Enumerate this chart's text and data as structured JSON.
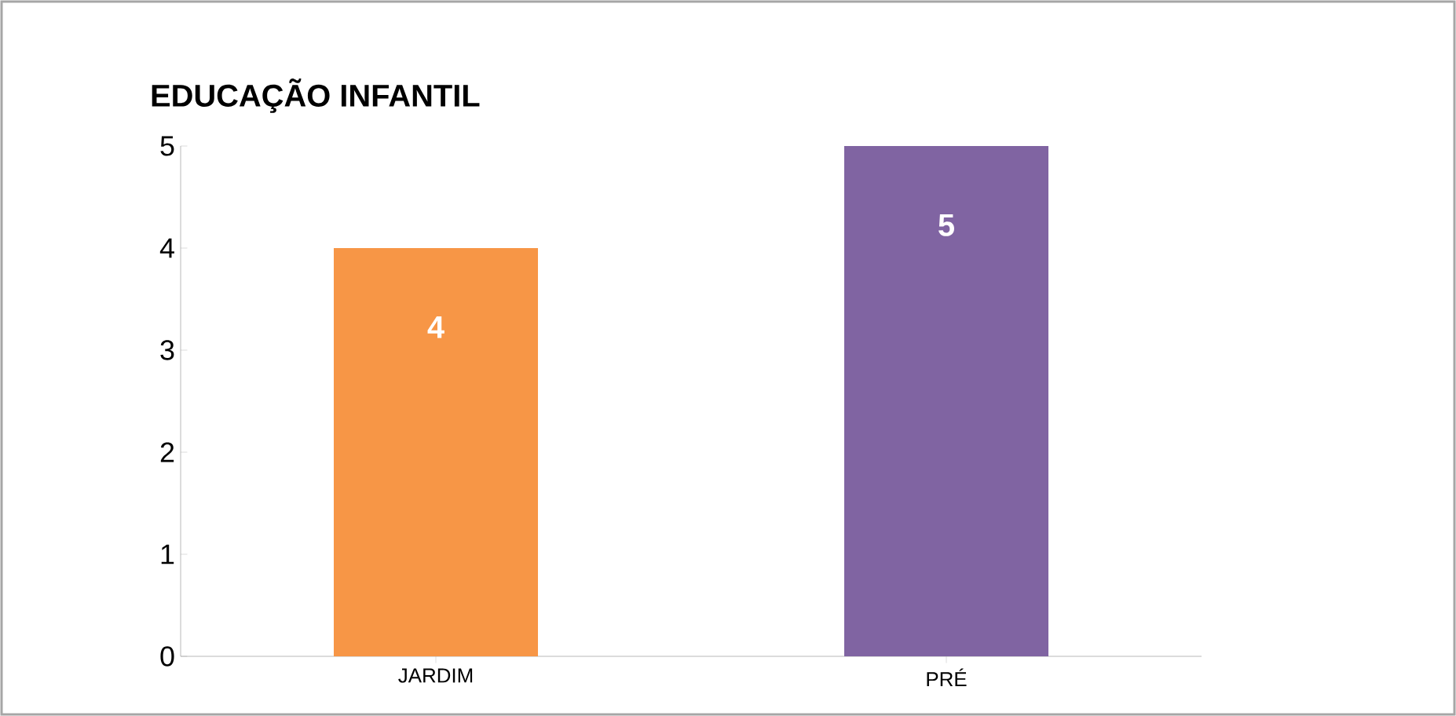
{
  "chart_data": {
    "type": "bar",
    "title": "EDUCAÇÃO INFANTIL",
    "categories": [
      "JARDIM",
      "PRÉ"
    ],
    "values": [
      4,
      5
    ],
    "colors": [
      "#f79646",
      "#8064a2"
    ],
    "ylim": [
      0,
      5
    ],
    "yticks": [
      0,
      1,
      2,
      3,
      4,
      5
    ],
    "data_labels": true
  }
}
